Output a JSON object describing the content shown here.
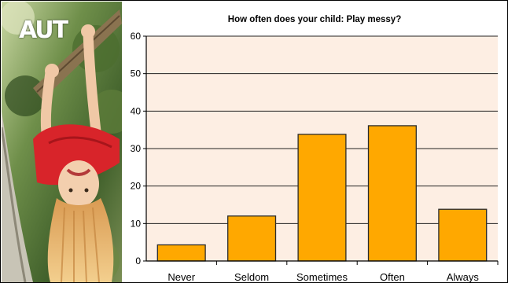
{
  "logo_text": "AUT",
  "photo_icon": "child-hanging-from-tree-photo",
  "colors": {
    "plot_bg": "#fdeee3",
    "bar_fill": "#ffa800",
    "bar_stroke": "#2b2b2b",
    "grid": "#222222"
  },
  "chart_data": {
    "type": "bar",
    "title": "How often does your child: Play messy?",
    "xlabel": "",
    "ylabel": "",
    "categories": [
      "Never",
      "Seldom",
      "Sometimes",
      "Often",
      "Always"
    ],
    "values": [
      4.3,
      12,
      33.8,
      36.1,
      13.8
    ],
    "ylim": [
      0,
      60
    ],
    "yticks": [
      "0",
      "10",
      "20",
      "30",
      "40",
      "50",
      "60"
    ],
    "grid": true,
    "legend": "none"
  }
}
